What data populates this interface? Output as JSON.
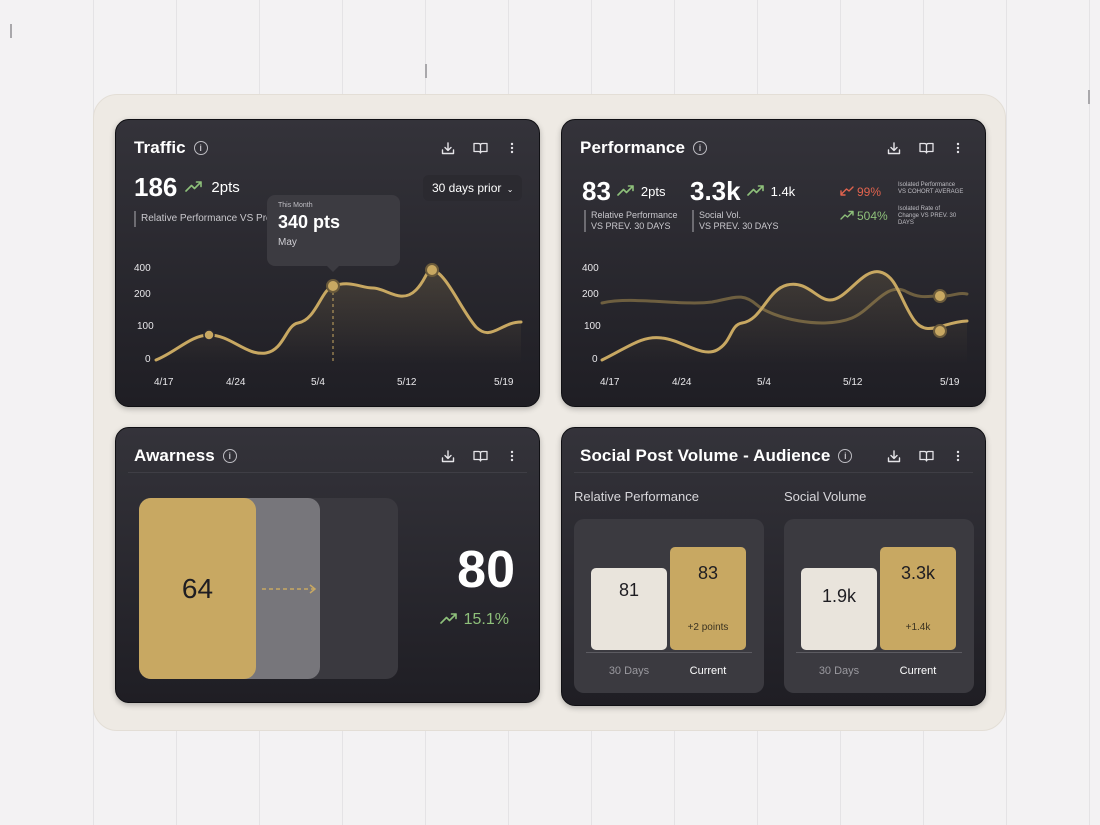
{
  "colors": {
    "gold": "#c8a862",
    "green": "#8ec07a",
    "red": "#e0634e",
    "card": "#2a292f"
  },
  "traffic": {
    "title": "Traffic",
    "value": "186",
    "delta": "2pts",
    "caption": "Relative Performance VS Pre",
    "range_button": "30 days prior",
    "tooltip": {
      "label": "This Month",
      "value": "340 pts",
      "sub": "May"
    },
    "y_ticks": [
      "400",
      "200",
      "100",
      "0"
    ],
    "x_ticks": [
      "4/17",
      "4/24",
      "5/4",
      "5/12",
      "5/19"
    ]
  },
  "performance": {
    "title": "Performance",
    "metric1": {
      "value": "83",
      "delta": "2pts",
      "caption1": "Relative Performance",
      "caption2": "VS PREV. 30 DAYS"
    },
    "metric2": {
      "value": "3.3k",
      "delta": "1.4k",
      "caption1": "Social Vol.",
      "caption2": "VS PREV. 30 DAYS"
    },
    "iso1": {
      "value": "99%",
      "label1": "Isolated Performance",
      "label2": "VS COHORT AVERAGE"
    },
    "iso2": {
      "value": "504%",
      "label1": "Isolated Rate of",
      "label2": "Change VS PREV. 30",
      "label3": "DAYS"
    },
    "y_ticks": [
      "400",
      "200",
      "100",
      "0"
    ],
    "x_ticks": [
      "4/17",
      "4/24",
      "5/4",
      "5/12",
      "5/19"
    ]
  },
  "awareness": {
    "title": "Awarness",
    "bar_value": "64",
    "big_value": "80",
    "delta": "15.1%"
  },
  "social": {
    "title": "Social Post Volume - Audience",
    "relative": {
      "label": "Relative Performance",
      "prev": "81",
      "current": "83",
      "current_sub": "+2 points",
      "prev_label": "30 Days",
      "current_label": "Current"
    },
    "volume": {
      "label": "Social Volume",
      "prev": "1.9k",
      "current": "3.3k",
      "current_sub": "+1.4k",
      "prev_label": "30 Days",
      "current_label": "Current"
    }
  }
}
